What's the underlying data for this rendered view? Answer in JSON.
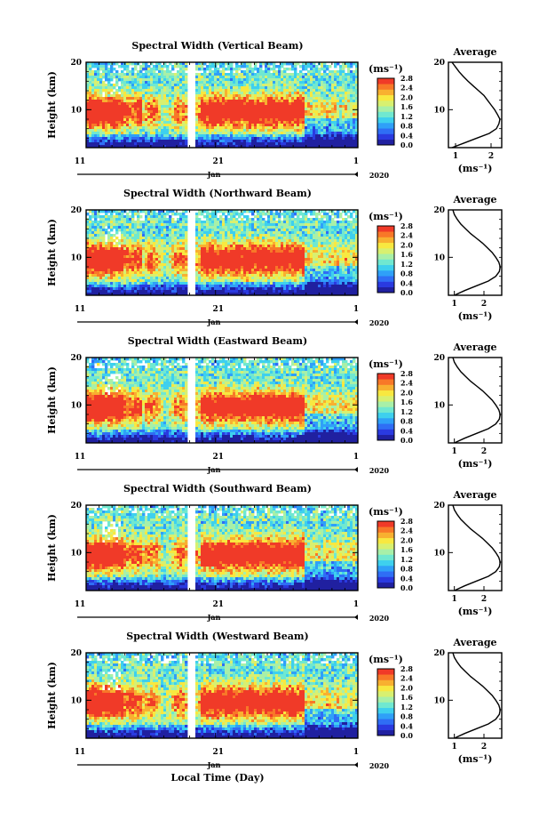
{
  "chart_data": {
    "type": "heatmap",
    "x_axis": {
      "label": "Local Time (Day)",
      "month": "Jan",
      "year": "2020",
      "ticks": [
        "11",
        "21",
        "1"
      ]
    },
    "colorbar": {
      "unit": "(ms⁻¹)",
      "ticks": [
        "2.8",
        "2.4",
        "2.0",
        "1.6",
        "1.2",
        "0.8",
        "0.4",
        "0.0"
      ],
      "range": [
        0.0,
        2.8
      ],
      "colors": [
        "#2020a0",
        "#2a3ae0",
        "#2f6ef5",
        "#2fa0f8",
        "#3ed0ee",
        "#70e8d0",
        "#a8f0a8",
        "#d8f070",
        "#f8e840",
        "#f8b030",
        "#f87828",
        "#f03a28"
      ]
    },
    "panels": [
      {
        "title": "Spectral Width (Vertical Beam)",
        "ylabel": "Height (km)",
        "yticks": [
          "20",
          "10"
        ],
        "profile": {
          "title": "Average",
          "xticks": [
            "1",
            "2"
          ],
          "xlabel": "(ms⁻¹)",
          "xlim": [
            0.8,
            2.3
          ],
          "heights": [
            2,
            3,
            4,
            5,
            6,
            7,
            8,
            9,
            10,
            11,
            12,
            13,
            14,
            15,
            16,
            17,
            18,
            19,
            20
          ],
          "values": [
            0.9,
            1.25,
            1.6,
            1.95,
            2.15,
            2.22,
            2.25,
            2.18,
            2.1,
            2.0,
            1.9,
            1.8,
            1.65,
            1.5,
            1.35,
            1.22,
            1.1,
            1.0,
            0.9
          ]
        }
      },
      {
        "title": "Spectral Width (Northward Beam)",
        "ylabel": "Height (km)",
        "yticks": [
          "20",
          "10"
        ],
        "profile": {
          "title": "Average",
          "xticks": [
            "1",
            "2"
          ],
          "xlabel": "(ms⁻¹)",
          "xlim": [
            0.8,
            2.6
          ],
          "heights": [
            2,
            3,
            4,
            5,
            6,
            7,
            8,
            9,
            10,
            11,
            12,
            13,
            14,
            15,
            16,
            17,
            18,
            19,
            20
          ],
          "values": [
            1.0,
            1.35,
            1.75,
            2.15,
            2.4,
            2.52,
            2.55,
            2.5,
            2.4,
            2.28,
            2.12,
            1.95,
            1.75,
            1.55,
            1.38,
            1.22,
            1.1,
            1.0,
            0.95
          ]
        }
      },
      {
        "title": "Spectral Width (Eastward Beam)",
        "ylabel": "Height (km)",
        "yticks": [
          "20",
          "10"
        ],
        "profile": {
          "title": "Average",
          "xticks": [
            "1",
            "2"
          ],
          "xlabel": "(ms⁻¹)",
          "xlim": [
            0.8,
            2.6
          ],
          "heights": [
            2,
            3,
            4,
            5,
            6,
            7,
            8,
            9,
            10,
            11,
            12,
            13,
            14,
            15,
            16,
            17,
            18,
            19,
            20
          ],
          "values": [
            1.0,
            1.35,
            1.75,
            2.15,
            2.4,
            2.52,
            2.55,
            2.5,
            2.4,
            2.28,
            2.12,
            1.95,
            1.75,
            1.55,
            1.38,
            1.22,
            1.1,
            1.0,
            0.95
          ]
        }
      },
      {
        "title": "Spectral Width (Southward Beam)",
        "ylabel": "Height (km)",
        "yticks": [
          "20",
          "10"
        ],
        "profile": {
          "title": "Average",
          "xticks": [
            "1",
            "2"
          ],
          "xlabel": "(ms⁻¹)",
          "xlim": [
            0.8,
            2.6
          ],
          "heights": [
            2,
            3,
            4,
            5,
            6,
            7,
            8,
            9,
            10,
            11,
            12,
            13,
            14,
            15,
            16,
            17,
            18,
            19,
            20
          ],
          "values": [
            1.0,
            1.35,
            1.75,
            2.15,
            2.4,
            2.52,
            2.55,
            2.5,
            2.4,
            2.28,
            2.12,
            1.95,
            1.75,
            1.55,
            1.38,
            1.22,
            1.1,
            1.0,
            0.95
          ]
        }
      },
      {
        "title": "Spectral Width (Westward Beam)",
        "ylabel": "Height (km)",
        "yticks": [
          "20",
          "10"
        ],
        "profile": {
          "title": "Average",
          "xticks": [
            "1",
            "2"
          ],
          "xlabel": "(ms⁻¹)",
          "xlim": [
            0.8,
            2.6
          ],
          "heights": [
            2,
            3,
            4,
            5,
            6,
            7,
            8,
            9,
            10,
            11,
            12,
            13,
            14,
            15,
            16,
            17,
            18,
            19,
            20
          ],
          "values": [
            1.0,
            1.35,
            1.75,
            2.15,
            2.4,
            2.52,
            2.55,
            2.5,
            2.4,
            2.28,
            2.12,
            1.95,
            1.75,
            1.55,
            1.38,
            1.22,
            1.1,
            1.0,
            0.95
          ]
        }
      }
    ]
  }
}
